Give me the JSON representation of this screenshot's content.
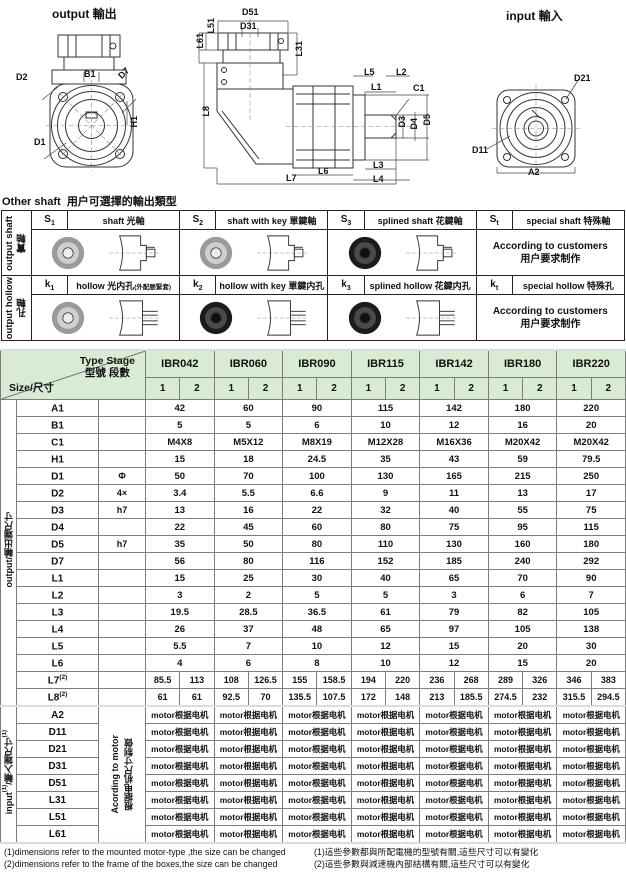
{
  "drawings": {
    "output_title": "output 輸出",
    "input_title": "input 輸入",
    "labels": {
      "d2": "D2",
      "b1": "B1",
      "d7": "D7",
      "d1": "D1",
      "h1": "H1",
      "d51": "D51",
      "d31": "D31",
      "l51": "L51",
      "l61": "L61",
      "l31": "L31",
      "l8": "L8",
      "l5": "L5",
      "l2": "L2",
      "l1": "L1",
      "c1": "C1",
      "d3": "D3",
      "d4": "D4",
      "d5": "D5",
      "l7": "L7",
      "l6": "L6",
      "l3": "L3",
      "l4": "L4",
      "d21": "D21",
      "d11": "D11",
      "a2": "A2"
    }
  },
  "other_shaft": {
    "heading_en": "Other shaft",
    "heading_zh": "用户可選擇的輸出類型",
    "according_en": "According to customers",
    "according_zh": "用户要求制作",
    "rows": [
      {
        "label_en": "output shaft",
        "label_zh": "實軸",
        "types": [
          {
            "sym": "S",
            "sub": "1",
            "desc": "shaft 光軸",
            "desc_small": "",
            "photo": "light"
          },
          {
            "sym": "S",
            "sub": "2",
            "desc": "shaft with key 單鍵軸",
            "desc_small": "",
            "photo": "light"
          },
          {
            "sym": "S",
            "sub": "3",
            "desc": "splined shaft 花鍵軸",
            "desc_small": "",
            "photo": "dark"
          },
          {
            "sym": "S",
            "sub": "t",
            "desc": "special shaft 特殊軸",
            "desc_small": "",
            "photo": "none"
          }
        ]
      },
      {
        "label_en": "output hollow",
        "label_zh": "孔軸",
        "types": [
          {
            "sym": "k",
            "sub": "1",
            "desc": "hollow 光内孔",
            "desc_small": "(外配脹緊套)",
            "photo": "light"
          },
          {
            "sym": "k",
            "sub": "2",
            "desc": "hollow with key 單鍵内孔",
            "desc_small": "",
            "photo": "dark"
          },
          {
            "sym": "k",
            "sub": "3",
            "desc": "splined hollow 花鍵内孔",
            "desc_small": "",
            "photo": "dark"
          },
          {
            "sym": "k",
            "sub": "t",
            "desc": "special hollow 特殊孔",
            "desc_small": "",
            "photo": "none"
          }
        ]
      }
    ]
  },
  "main_table": {
    "corner_type": "Type Stage",
    "corner_type_zh": "型號 段數",
    "corner_size": "Size/尺寸",
    "models": [
      "IBR042",
      "IBR060",
      "IBR090",
      "IBR115",
      "IBR142",
      "IBR180",
      "IBR220"
    ],
    "stages": [
      "1",
      "2"
    ],
    "output_section_label": "output/輸出端尺寸",
    "input_label_parts": {
      "pre": "input",
      "sup1": "(1)",
      "mid": "/輸入端尺寸",
      "sup2": "(1)"
    },
    "according_motor_en": "Acording to motor",
    "according_motor_zh": "根据电机尺寸制做",
    "motor_cell": "motor根据电机",
    "rows": [
      {
        "name": "A1",
        "qual": "",
        "split": false,
        "v": [
          "42",
          "60",
          "90",
          "115",
          "142",
          "180",
          "220"
        ]
      },
      {
        "name": "B1",
        "qual": "",
        "split": false,
        "v": [
          "5",
          "5",
          "6",
          "10",
          "12",
          "16",
          "20"
        ]
      },
      {
        "name": "C1",
        "qual": "",
        "split": false,
        "v": [
          "M4X8",
          "M5X12",
          "M8X19",
          "M12X28",
          "M16X36",
          "M20X42",
          "M20X42"
        ]
      },
      {
        "name": "H1",
        "qual": "",
        "split": false,
        "v": [
          "15",
          "18",
          "24.5",
          "35",
          "43",
          "59",
          "79.5"
        ]
      },
      {
        "name": "D1",
        "qual": "Φ",
        "split": false,
        "v": [
          "50",
          "70",
          "100",
          "130",
          "165",
          "215",
          "250"
        ]
      },
      {
        "name": "D2",
        "qual": "4×",
        "split": false,
        "v": [
          "3.4",
          "5.5",
          "6.6",
          "9",
          "11",
          "13",
          "17"
        ]
      },
      {
        "name": "D3",
        "qual": "h7",
        "split": false,
        "v": [
          "13",
          "16",
          "22",
          "32",
          "40",
          "55",
          "75"
        ]
      },
      {
        "name": "D4",
        "qual": "",
        "split": false,
        "v": [
          "22",
          "45",
          "60",
          "80",
          "75",
          "95",
          "115"
        ]
      },
      {
        "name": "D5",
        "qual": "h7",
        "split": false,
        "v": [
          "35",
          "50",
          "80",
          "110",
          "130",
          "160",
          "180"
        ]
      },
      {
        "name": "D7",
        "qual": "",
        "split": false,
        "v": [
          "56",
          "80",
          "116",
          "152",
          "185",
          "240",
          "292"
        ]
      },
      {
        "name": "L1",
        "qual": "",
        "split": false,
        "v": [
          "15",
          "25",
          "30",
          "40",
          "65",
          "70",
          "90"
        ]
      },
      {
        "name": "L2",
        "qual": "",
        "split": false,
        "v": [
          "3",
          "2",
          "5",
          "5",
          "3",
          "6",
          "7"
        ]
      },
      {
        "name": "L3",
        "qual": "",
        "split": false,
        "v": [
          "19.5",
          "28.5",
          "36.5",
          "61",
          "79",
          "82",
          "105"
        ]
      },
      {
        "name": "L4",
        "qual": "",
        "split": false,
        "v": [
          "26",
          "37",
          "48",
          "65",
          "97",
          "105",
          "138"
        ]
      },
      {
        "name": "L5",
        "qual": "",
        "split": false,
        "v": [
          "5.5",
          "7",
          "10",
          "12",
          "15",
          "20",
          "30"
        ]
      },
      {
        "name": "L6",
        "qual": "",
        "split": false,
        "v": [
          "4",
          "6",
          "8",
          "10",
          "12",
          "15",
          "20"
        ]
      },
      {
        "name": "L7",
        "sup": "(2)",
        "qual": "",
        "split": true,
        "v": [
          "85.5",
          "113",
          "108",
          "126.5",
          "155",
          "158.5",
          "194",
          "220",
          "236",
          "268",
          "289",
          "326",
          "346",
          "383"
        ]
      },
      {
        "name": "L8",
        "sup": "(2)",
        "qual": "",
        "split": true,
        "v": [
          "61",
          "61",
          "92.5",
          "70",
          "135.5",
          "107.5",
          "172",
          "148",
          "213",
          "185.5",
          "274.5",
          "232",
          "315.5",
          "294.5"
        ]
      }
    ],
    "input_rows": [
      "A2",
      "D11",
      "D21",
      "D31",
      "D51",
      "L31",
      "L51",
      "L61"
    ]
  },
  "notes": {
    "left": [
      "(1)dimensions refer to the mounted motor-type ,the size can be changed",
      "(2)dimensions refer to the frame of the boxes,the size can be changed"
    ],
    "right": [
      "(1)這些參數都與所配電機的型號有關,這些尺寸可以有變化",
      "(2)這些參數與減速機內部結構有關,這些尺寸可以有變化"
    ]
  },
  "colors": {
    "header_green": "#d9ecd3",
    "grid": "#7d7d7d"
  }
}
